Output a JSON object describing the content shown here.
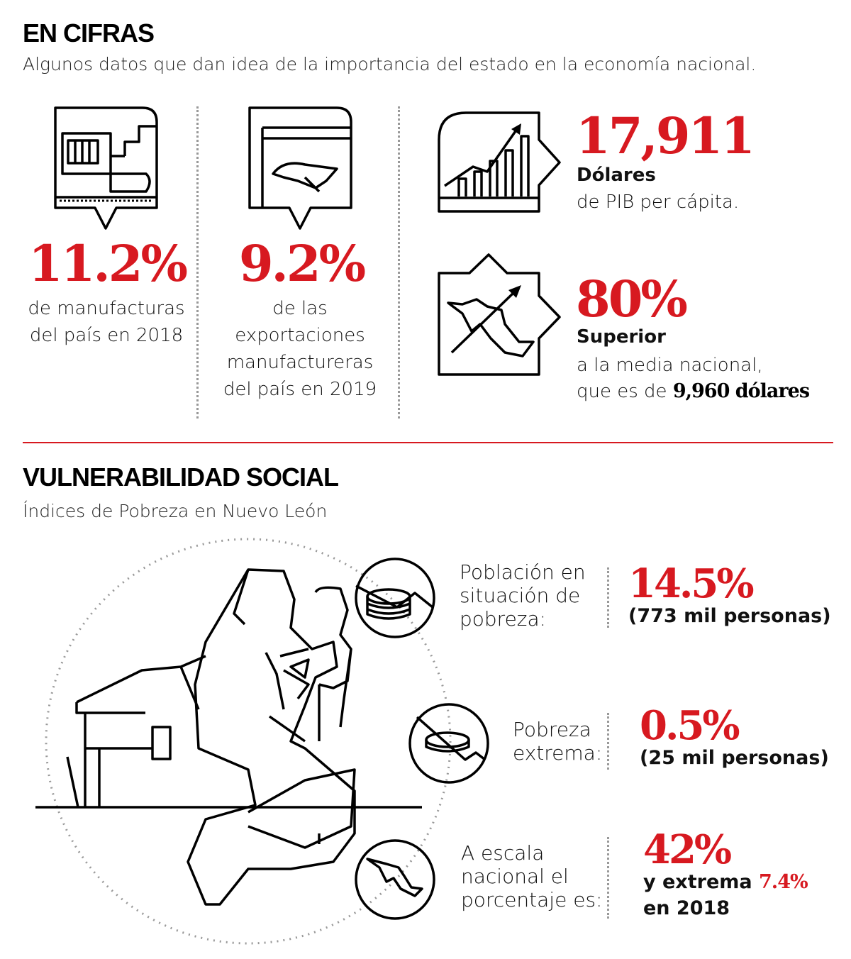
{
  "cifras": {
    "title": "EN CIFRAS",
    "subtitle": "Algunos datos que dan idea de la importancia del estado en la economía nacional.",
    "items": [
      {
        "icon": "factory-icon",
        "value": "11.2%",
        "lines": [
          "de manufacturas",
          "del país en 2018"
        ]
      },
      {
        "icon": "eagle-screen-icon",
        "value": "9.2%",
        "lines": [
          "de las",
          "exportaciones",
          "manufactureras",
          "del país en 2019"
        ]
      }
    ],
    "pib": {
      "icon": "growth-chart-icon",
      "value": "17,911",
      "label": "Dólares",
      "desc": "de PIB per cápita."
    },
    "superior": {
      "icon": "mexico-map-arrow-icon",
      "value": "80%",
      "label": "Superior",
      "line1": "a la media nacional,",
      "line2_prefix": "que es de ",
      "line2_value": "9,960 dólares"
    }
  },
  "vulnerabilidad": {
    "title": "VULNERABILIDAD SOCIAL",
    "subtitle": "Índices de Pobreza en Nuevo León",
    "stats": [
      {
        "icon": "coin-stack-icon",
        "label": [
          "Población en",
          "situación de",
          "pobreza:"
        ],
        "value": "14.5%",
        "detail": "(773 mil personas)"
      },
      {
        "icon": "single-coin-icon",
        "label": [
          "Pobreza",
          "extrema:"
        ],
        "value": "0.5%",
        "detail": "(25 mil personas)"
      },
      {
        "icon": "mexico-map-icon",
        "label": [
          "A escala",
          "nacional el",
          "porcentaje es:"
        ],
        "value": "42%",
        "detail_prefix": "y extrema ",
        "detail_value": "7.4%",
        "detail_suffix": "en 2018"
      }
    ]
  },
  "colors": {
    "accent": "#d71920",
    "text": "#111111"
  }
}
